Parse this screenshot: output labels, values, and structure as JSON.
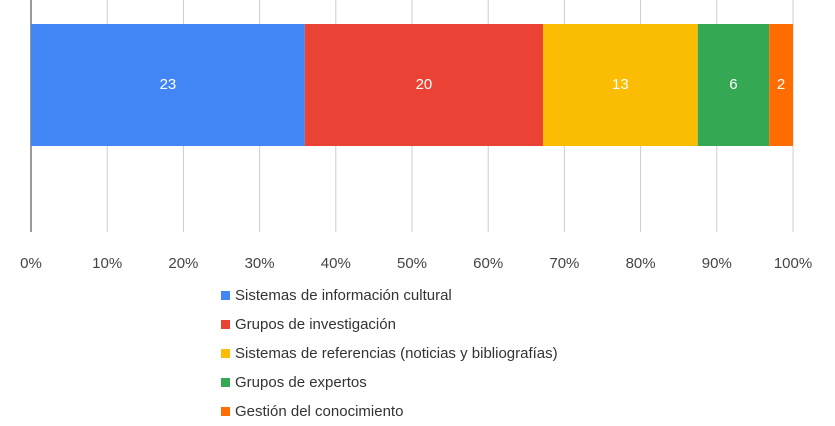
{
  "chart_data": {
    "type": "bar",
    "orientation": "horizontal",
    "stacked": "percent",
    "categories": [
      ""
    ],
    "series": [
      {
        "name": "Sistemas de información cultural",
        "values": [
          23
        ],
        "color": "#4285F4"
      },
      {
        "name": "Grupos de investigación",
        "values": [
          20
        ],
        "color": "#EA4335"
      },
      {
        "name": "Sistemas de referencias (noticias y bibliografías)",
        "values": [
          13
        ],
        "color": "#FBBC04"
      },
      {
        "name": "Grupos de expertos",
        "values": [
          6
        ],
        "color": "#34A853"
      },
      {
        "name": "Gestión del conocimiento",
        "values": [
          2
        ],
        "color": "#FF6D01"
      }
    ],
    "x_ticks": [
      "0%",
      "10%",
      "20%",
      "30%",
      "40%",
      "50%",
      "60%",
      "70%",
      "80%",
      "90%",
      "100%"
    ],
    "xlim": [
      0,
      100
    ],
    "grid": true,
    "legend_position": "bottom",
    "title": "",
    "xlabel": "",
    "ylabel": ""
  }
}
